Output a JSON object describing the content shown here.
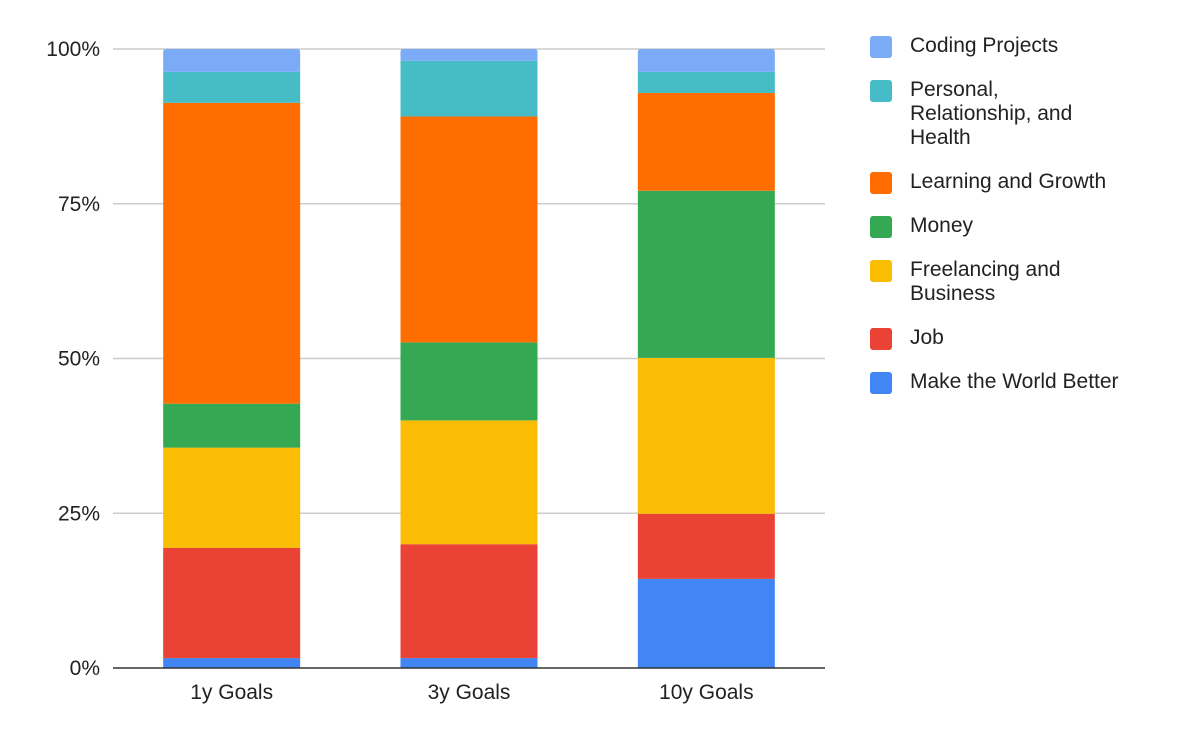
{
  "chart_data": {
    "type": "bar",
    "stacked": true,
    "percent": true,
    "categories": [
      "1y Goals",
      "3y Goals",
      "10y Goals"
    ],
    "series": [
      {
        "name": "Make the World Better",
        "color": "#4285f4",
        "values": [
          1.6,
          1.6,
          14.4
        ]
      },
      {
        "name": "Job",
        "color": "#ea4335",
        "values": [
          17.8,
          18.4,
          10.5
        ]
      },
      {
        "name": "Freelancing and Business",
        "color": "#fbbc04",
        "values": [
          16.2,
          20.0,
          25.2
        ]
      },
      {
        "name": "Money",
        "color": "#34a853",
        "values": [
          7.1,
          12.6,
          27.0
        ]
      },
      {
        "name": "Learning and Growth",
        "color": "#ff6d01",
        "values": [
          48.6,
          36.5,
          15.8
        ]
      },
      {
        "name": "Personal, Relationship, and Health",
        "color": "#46bdc6",
        "values": [
          5.0,
          9.0,
          3.4
        ]
      },
      {
        "name": "Coding Projects",
        "color": "#7baaf7",
        "values": [
          3.7,
          1.9,
          3.7
        ]
      }
    ],
    "yticks": [
      "0%",
      "25%",
      "50%",
      "75%",
      "100%"
    ],
    "ylim": [
      0,
      100
    ],
    "grid": true,
    "legend": "right"
  }
}
